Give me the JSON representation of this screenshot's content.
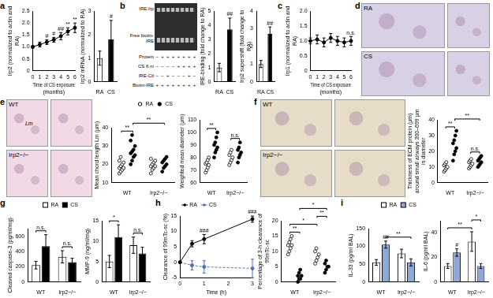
{
  "chart_data": [
    {
      "type": "line",
      "panel": "a",
      "x": [
        0,
        1,
        2,
        3,
        4,
        5,
        6
      ],
      "xlim": [
        0,
        6
      ],
      "xticks": [
        0,
        1,
        2,
        3,
        4,
        5,
        6
      ],
      "ylim": [
        0,
        2.5
      ],
      "yticks": [
        0,
        0.5,
        {
          "value": 1,
          "label": "1.0"
        },
        1.5,
        {
          "value": 2,
          "label": "2.0"
        },
        2.5
      ],
      "xlabel": "Time of CS exposure (months)",
      "ylabel": "Irp2 (normalized to actin and RA)",
      "grid": false,
      "series": [
        {
          "values": [
            1.0,
            1.1,
            1.2,
            1.3,
            1.45,
            1.65,
            1.8
          ],
          "errors": [
            0.05,
            0.1,
            0.1,
            0.1,
            0.15,
            0.15,
            0.2
          ],
          "color": "#000000",
          "marker": "circle",
          "line_style": "solid"
        }
      ],
      "annotations": [
        {
          "text": "#",
          "series": 0,
          "index": 2
        },
        {
          "text": "#",
          "series": 0,
          "index": 3
        },
        {
          "text": "##",
          "series": 0,
          "index": 4
        },
        {
          "text": "**",
          "series": 0,
          "index": 5
        },
        {
          "text": "**",
          "series": 0,
          "index": 6
        }
      ]
    },
    {
      "type": "bar",
      "categories": [
        "RA",
        "CS"
      ],
      "values": [
        1.0,
        1.8
      ],
      "errors": [
        0.3,
        0.8
      ],
      "colors": [
        "#ffffff",
        "#000000"
      ],
      "ylim": [
        0,
        3
      ],
      "yticks": [
        0,
        1,
        2,
        3
      ],
      "ylabel": "Irp2 mRNA (normalized to RA)",
      "grid": false,
      "annotations": [
        {
          "text": "#",
          "index": 1
        }
      ]
    },
    {
      "type": "image",
      "panel": "b",
      "color": "#2e2e2e",
      "band_labels": [
        "IRE:Irp",
        "Free biotin-IRE"
      ],
      "rows": [
        {
          "label": "Protein",
          "marks": [
            "−",
            "+",
            "+",
            "+",
            "+",
            "+",
            "+",
            "+"
          ]
        },
        {
          "label": "CS 6 m",
          "marks": [
            "−",
            "−",
            "−",
            "−",
            "+",
            "+",
            "+",
            "+"
          ]
        },
        {
          "label": "IRE-Ctl",
          "marks": [
            "−",
            "−",
            "+",
            "−",
            "−",
            "−",
            "+",
            "−"
          ]
        },
        {
          "label": "Biotin-IRE",
          "marks": [
            "+",
            "+",
            "+",
            "+",
            "+",
            "+",
            "+",
            "+"
          ]
        }
      ]
    },
    {
      "type": "bar",
      "categories": [
        "RA",
        "CS"
      ],
      "values": [
        1.0,
        3.7
      ],
      "errors": [
        0.3,
        0.8
      ],
      "colors": [
        "#ffffff",
        "#000000"
      ],
      "ylim": [
        0,
        5
      ],
      "yticks": [
        0,
        1,
        2,
        3,
        4,
        5
      ],
      "ylabel": "IRE-binding (fold change to RA)",
      "grid": false,
      "annotations": [
        {
          "text": "##",
          "index": 1
        }
      ]
    },
    {
      "type": "bar",
      "categories": [
        "RA",
        "CS"
      ],
      "values": [
        1.0,
        2.7
      ],
      "errors": [
        0.2,
        0.4
      ],
      "colors": [
        "#ffffff",
        "#000000"
      ],
      "ylim": [
        0,
        4
      ],
      "yticks": [
        0,
        1,
        2,
        3,
        4
      ],
      "ylabel": "Irp2 supershift (fold change to RA)",
      "grid": false,
      "annotations": [
        {
          "text": "##",
          "index": 1
        }
      ]
    },
    {
      "type": "line",
      "panel": "c",
      "x": [
        0,
        1,
        2,
        3,
        4,
        5,
        6
      ],
      "xlim": [
        0,
        6
      ],
      "xticks": [
        0,
        1,
        2,
        3,
        4,
        5,
        6
      ],
      "ylim": [
        0,
        2
      ],
      "yticks": [
        0,
        0.5,
        {
          "value": 1,
          "label": "1.0"
        },
        1.5,
        {
          "value": 2,
          "label": "2.0"
        }
      ],
      "xlabel": "Time of CS exposure (months)",
      "ylabel": "Irp1 (normalized to actin and RA)",
      "grid": false,
      "series": [
        {
          "values": [
            1.0,
            1.05,
            0.95,
            1.1,
            1.0,
            0.95,
            1.0
          ],
          "errors": [
            0.1,
            0.15,
            0.15,
            0.15,
            0.15,
            0.15,
            0.15
          ],
          "color": "#000000",
          "marker": "circle",
          "line_style": "solid"
        }
      ],
      "annotations": [
        {
          "text": "n.s.",
          "series": 0,
          "index": 6
        }
      ]
    },
    {
      "type": "image",
      "panel": "d",
      "color": "#d8d0e4",
      "labels": [
        "RA",
        "CS"
      ]
    },
    {
      "type": "image",
      "panel": "e",
      "color": "#f2d9e6",
      "labels": [
        "WT",
        "Irp2−/−"
      ],
      "inset_text": "Lm"
    },
    {
      "type": "dot",
      "categories": [
        "WT",
        "Irp2−/−"
      ],
      "ylim": [
        10,
        40
      ],
      "yticks": [
        10,
        20,
        30,
        40
      ],
      "ylabel": "Mean chord length Lm (μm)",
      "grid": false,
      "legend": "top right",
      "series": [
        {
          "name": "RA",
          "color": "#ffffff",
          "marker": "circle",
          "values": [
            [
              15,
              16,
              17,
              18,
              18,
              19,
              20,
              21,
              22,
              24
            ],
            [
              15,
              17,
              18,
              19,
              19,
              20,
              21,
              22,
              23
            ]
          ]
        },
        {
          "name": "CS",
          "color": "#000000",
          "marker": "circle",
          "values": [
            [
              20,
              22,
              24,
              25,
              26,
              27,
              28,
              30,
              33,
              36
            ],
            [
              16,
              18,
              19,
              20,
              21,
              22,
              23,
              24
            ]
          ]
        }
      ],
      "annotations": [
        {
          "text": "**",
          "from": 0,
          "to": 1
        },
        {
          "text": "**",
          "from": 1,
          "to": 3
        }
      ]
    },
    {
      "type": "dot",
      "categories": [
        "WT",
        "Irp2−/−"
      ],
      "ylim": [
        60,
        110
      ],
      "yticks": [
        60,
        70,
        80,
        90,
        100,
        110
      ],
      "ylabel": "Weighted mean diameter (μm)",
      "grid": false,
      "series": [
        {
          "name": "RA",
          "color": "#ffffff",
          "marker": "circle",
          "values": [
            [
              68,
              70,
              72,
              74,
              75,
              76,
              78,
              80
            ],
            [
              74,
              76,
              78,
              80,
              82,
              84,
              86
            ]
          ]
        },
        {
          "name": "CS",
          "color": "#000000",
          "marker": "circle",
          "values": [
            [
              80,
              84,
              86,
              88,
              90,
              92,
              96,
              100
            ],
            [
              76,
              80,
              82,
              84,
              86,
              88,
              92
            ]
          ]
        }
      ],
      "annotations": [
        {
          "text": "**",
          "from": 0,
          "to": 1
        },
        {
          "text": "n.s.",
          "from": 2,
          "to": 3
        }
      ]
    },
    {
      "type": "image",
      "panel": "f",
      "color": "#e6dcc8",
      "labels": [
        "WT",
        "Irp2−/−"
      ]
    },
    {
      "type": "dot",
      "categories": [
        "WT",
        "Irp2−/−"
      ],
      "ylim": [
        0,
        40
      ],
      "yticks": [
        0,
        10,
        20,
        30,
        40
      ],
      "ylabel": "Thickness of ECM protein (μm) around small airways 300–699 μm in diameter",
      "grid": false,
      "series": [
        {
          "name": "RA",
          "color": "#ffffff",
          "marker": "circle",
          "values": [
            [
              7,
              8,
              9,
              10,
              11,
              12,
              13
            ],
            [
              9,
              10,
              11,
              12,
              13,
              14,
              15
            ]
          ]
        },
        {
          "name": "CS",
          "color": "#000000",
          "marker": "circle",
          "values": [
            [
              14,
              18,
              20,
              22,
              25,
              27,
              30,
              33
            ],
            [
              10,
              11,
              12,
              13,
              14,
              15,
              16,
              17
            ]
          ]
        }
      ],
      "annotations": [
        {
          "text": "**",
          "from": 0,
          "to": 1
        },
        {
          "text": "n.s.",
          "from": 2,
          "to": 3
        },
        {
          "text": "**",
          "from": 1,
          "to": 3
        }
      ]
    },
    {
      "type": "bar",
      "panel": "g",
      "categories": [
        "WT",
        "Irp2−/−"
      ],
      "ylim": [
        0,
        700
      ],
      "yticks": [
        0,
        200,
        400,
        600
      ],
      "ylabel": "Cleaved caspase-3 (pg/ml/mg)",
      "grid": false,
      "legend": "top right",
      "series": [
        {
          "name": "RA",
          "color": "#ffffff",
          "values": [
            220,
            330
          ],
          "errors": [
            50,
            80
          ]
        },
        {
          "name": "CS",
          "color": "#000000",
          "values": [
            470,
            260
          ],
          "errors": [
            150,
            50
          ]
        }
      ],
      "annotations": [
        {
          "text": "n.s.",
          "from": 0,
          "to": 1
        },
        {
          "text": "n.s.",
          "from": 2,
          "to": 3
        }
      ]
    },
    {
      "type": "bar",
      "categories": [
        "WT",
        "Irp2−/−"
      ],
      "ylim": [
        0,
        15
      ],
      "yticks": [
        0,
        5,
        10,
        15
      ],
      "ylabel": "MMP-9 (ng/ml/mg)",
      "grid": false,
      "series": [
        {
          "name": "RA",
          "color": "#ffffff",
          "values": [
            5,
            9
          ],
          "errors": [
            1.5,
            2
          ]
        },
        {
          "name": "CS",
          "color": "#000000",
          "values": [
            11,
            7
          ],
          "errors": [
            3,
            1.5
          ]
        }
      ],
      "annotations": [
        {
          "text": "*",
          "from": 0,
          "to": 1
        },
        {
          "text": "n.s.",
          "from": 2,
          "to": 3
        }
      ]
    },
    {
      "type": "line",
      "panel": "h",
      "x": [
        0,
        0.5,
        1,
        3
      ],
      "xlim": [
        0,
        3
      ],
      "xticks": [
        0,
        1,
        2,
        3
      ],
      "ylim": [
        -5,
        15
      ],
      "yticks": [
        -5,
        0,
        5,
        10,
        15
      ],
      "xlabel": "Time (h)",
      "ylabel": "Clearance of 99mTc-sc (%)",
      "grid": false,
      "legend": "top left",
      "series": [
        {
          "name": "RA",
          "values": [
            0,
            6,
            7.5,
            14
          ],
          "errors": [
            0,
            1,
            1.5,
            1
          ],
          "color": "#000000",
          "marker": "circle",
          "line_style": "solid"
        },
        {
          "name": "CS",
          "values": [
            0,
            -1,
            -1.5,
            -2
          ],
          "errors": [
            0,
            1.5,
            2,
            3
          ],
          "color": "#4a72b8",
          "marker": "circle",
          "line_style": "dashed"
        }
      ],
      "annotations": [
        {
          "text": "###",
          "series": 0,
          "index": 2
        },
        {
          "text": "###",
          "series": 0,
          "index": 3
        }
      ]
    },
    {
      "type": "dot",
      "categories": [
        "WT",
        "Irp2−/−"
      ],
      "ylim": [
        0,
        20
      ],
      "yticks": [
        0,
        5,
        10,
        15,
        20
      ],
      "ylabel": "Percentage of 3-h clearance of 99mTc-sc",
      "grid": false,
      "series": [
        {
          "name": "RA",
          "color": "#ffffff",
          "marker": "circle",
          "values": [
            [
              9,
              10,
              11,
              12,
              12,
              13,
              14,
              15
            ],
            [
              6,
              7,
              8,
              9,
              10,
              11
            ]
          ]
        },
        {
          "name": "CS",
          "color": "#000000",
          "marker": "circle",
          "values": [
            [
              0,
              1,
              1,
              2,
              2,
              3,
              4
            ],
            [
              3,
              4,
              5,
              5,
              6,
              7
            ]
          ]
        }
      ],
      "annotations": [
        {
          "text": "**",
          "from": 0,
          "to": 1
        },
        {
          "text": "*",
          "from": 0,
          "to": 2
        },
        {
          "text": "**",
          "from": 2,
          "to": 3
        },
        {
          "text": "*",
          "from": 1,
          "to": 3
        }
      ]
    },
    {
      "type": "bar",
      "panel": "i",
      "categories": [
        "WT",
        "Irp2−/−"
      ],
      "ylim": [
        0,
        150
      ],
      "yticks": [
        0,
        50,
        100,
        150
      ],
      "ylabel": "IL-33 (pg/ml BAL)",
      "grid": false,
      "legend": "top right",
      "series": [
        {
          "name": "RA",
          "color": "#ffffff",
          "values": [
            55,
            80
          ],
          "errors": [
            8,
            12
          ]
        },
        {
          "name": "CS",
          "color": "#8ea9d9",
          "values": [
            105,
            55
          ],
          "errors": [
            10,
            10
          ]
        }
      ],
      "annotations": [
        {
          "text": "##",
          "series": 1,
          "index": 0
        },
        {
          "text": "**",
          "from": 1,
          "to": 3
        }
      ]
    },
    {
      "type": "bar",
      "categories": [
        "WT",
        "Irp2−/−"
      ],
      "ylim": [
        0,
        50
      ],
      "yticks": [
        0,
        20,
        40
      ],
      "ylabel": "IL-6 (pg/ml BAL)",
      "grid": false,
      "series": [
        {
          "name": "RA",
          "color": "#ffffff",
          "values": [
            13,
            33
          ],
          "errors": [
            2,
            8
          ]
        },
        {
          "name": "CS",
          "color": "#8ea9d9",
          "values": [
            24,
            13
          ],
          "errors": [
            3,
            2
          ]
        }
      ],
      "annotations": [
        {
          "text": "#",
          "series": 1,
          "index": 0
        },
        {
          "text": "**",
          "from": 0,
          "to": 2
        },
        {
          "text": "*",
          "from": 2,
          "to": 3
        }
      ]
    }
  ]
}
